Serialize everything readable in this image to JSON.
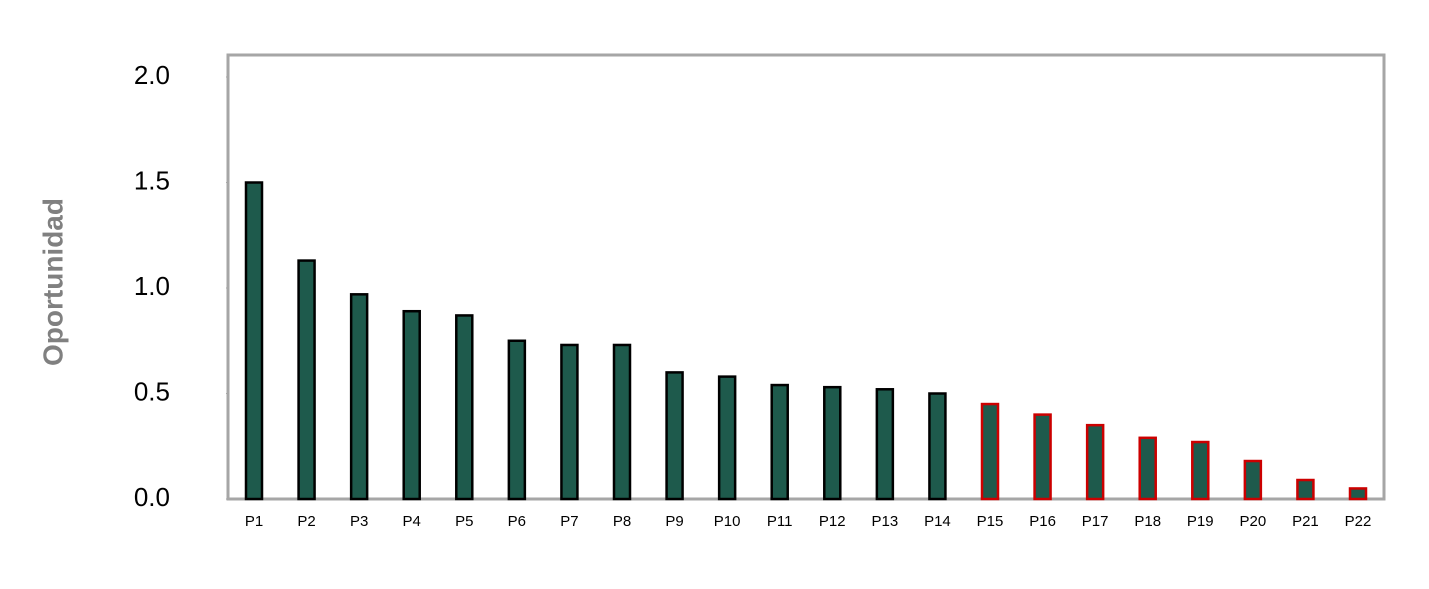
{
  "chart_data": {
    "type": "bar",
    "y_label": "Oportunidad",
    "categories": [
      "P1",
      "P2",
      "P3",
      "P4",
      "P5",
      "P6",
      "P7",
      "P8",
      "P9",
      "P10",
      "P11",
      "P12",
      "P13",
      "P14",
      "P15",
      "P16",
      "P17",
      "P18",
      "P19",
      "P20",
      "P21",
      "P22"
    ],
    "values": [
      1.5,
      1.13,
      0.97,
      0.89,
      0.87,
      0.75,
      0.73,
      0.73,
      0.6,
      0.58,
      0.54,
      0.53,
      0.52,
      0.5,
      0.45,
      0.4,
      0.35,
      0.29,
      0.27,
      0.18,
      0.09,
      0.05
    ],
    "color": "#1e5a4c",
    "edge_colors": [
      "#000000",
      "#000000",
      "#000000",
      "#000000",
      "#000000",
      "#000000",
      "#000000",
      "#000000",
      "#000000",
      "#000000",
      "#000000",
      "#000000",
      "#000000",
      "#000000",
      "#cc0000",
      "#cc0000",
      "#cc0000",
      "#cc0000",
      "#cc0000",
      "#cc0000",
      "#cc0000",
      "#cc0000"
    ],
    "ylim": [
      0,
      2
    ],
    "yticks": [
      {
        "value": 0,
        "label": "0.0"
      },
      {
        "value": 0.5,
        "label": "0.5"
      },
      {
        "value": 1,
        "label": "1.0"
      },
      {
        "value": 1.5,
        "label": "1.5"
      },
      {
        "value": 2,
        "label": "2.0"
      }
    ],
    "grid": false
  }
}
